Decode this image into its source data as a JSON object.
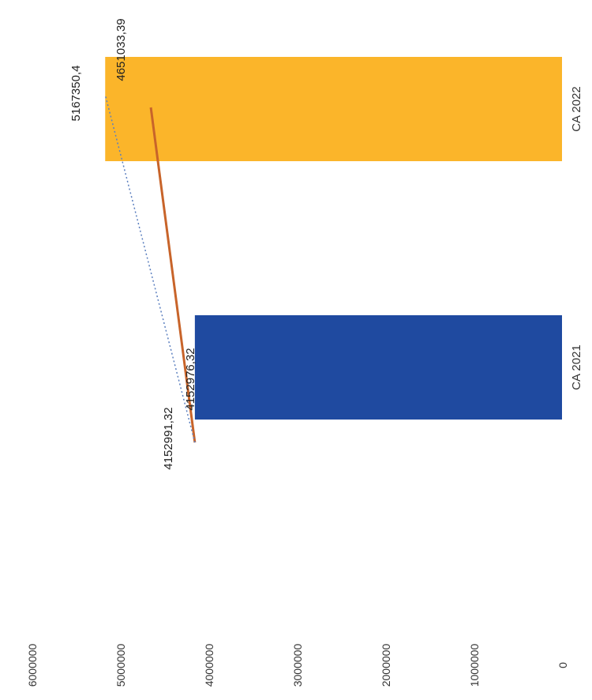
{
  "chart_data": {
    "type": "bar",
    "orientation": "rotated-90-clockwise",
    "categories": [
      "CA 2021",
      "CA 2022"
    ],
    "series": [
      {
        "values": [
          4152991.32,
          5167350.4
        ],
        "colors": [
          "#1f4aa0",
          "#fbb52a"
        ]
      }
    ],
    "lines": [
      {
        "style": "solid",
        "color": "#c8642a",
        "values": [
          4152976.32,
          4651033.39
        ]
      },
      {
        "style": "dotted",
        "color": "#5b7fbf",
        "values": [
          4152991.32,
          5167350.4
        ]
      }
    ],
    "data_labels": [
      {
        "category": "CA 2021",
        "text": "4152991,32",
        "value": 4152991.32
      },
      {
        "category": "CA 2021",
        "text": "4152976,32",
        "value": 4152976.32
      },
      {
        "category": "CA 2022",
        "text": "5167350,4",
        "value": 5167350.4
      },
      {
        "category": "CA 2022",
        "text": "4651033,39",
        "value": 4651033.39
      }
    ],
    "ytick_labels": [
      "0",
      "1000000",
      "2000000",
      "3000000",
      "4000000",
      "5000000",
      "6000000"
    ],
    "ylim": [
      0,
      6000000
    ],
    "grid": false,
    "title": "",
    "xlabel": "",
    "ylabel": ""
  }
}
